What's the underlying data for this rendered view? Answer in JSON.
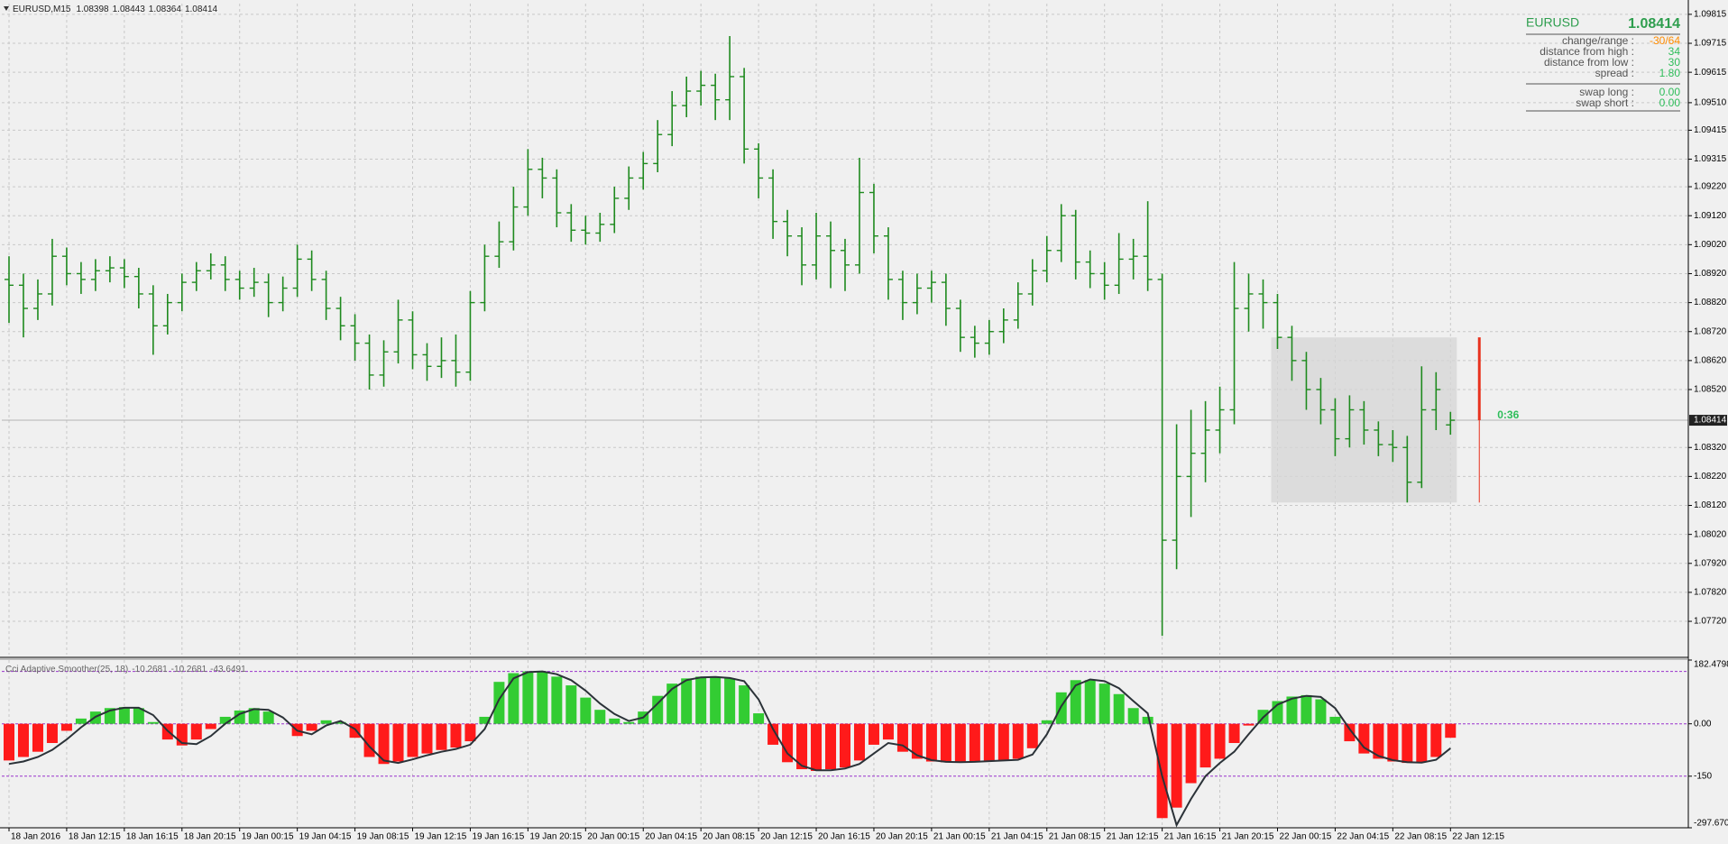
{
  "chart_data": [
    {
      "type": "ohlc",
      "title": "EURUSD,M15",
      "color": "#1e8a1e",
      "grid": true,
      "xlim": [
        -0.5,
        116.5
      ],
      "ylim": [
        1.07605,
        1.09852
      ],
      "xticks": [
        {
          "value": 0,
          "label": "18 Jan 2016"
        },
        {
          "value": 4,
          "label": "18 Jan 12:15"
        },
        {
          "value": 8,
          "label": "18 Jan 16:15"
        },
        {
          "value": 12,
          "label": "18 Jan 20:15"
        },
        {
          "value": 16,
          "label": "19 Jan 00:15"
        },
        {
          "value": 20,
          "label": "19 Jan 04:15"
        },
        {
          "value": 24,
          "label": "19 Jan 08:15"
        },
        {
          "value": 28,
          "label": "19 Jan 12:15"
        },
        {
          "value": 32,
          "label": "19 Jan 16:15"
        },
        {
          "value": 36,
          "label": "19 Jan 20:15"
        },
        {
          "value": 40,
          "label": "20 Jan 00:15"
        },
        {
          "value": 44,
          "label": "20 Jan 04:15"
        },
        {
          "value": 48,
          "label": "20 Jan 08:15"
        },
        {
          "value": 52,
          "label": "20 Jan 12:15"
        },
        {
          "value": 56,
          "label": "20 Jan 16:15"
        },
        {
          "value": 60,
          "label": "20 Jan 20:15"
        },
        {
          "value": 64,
          "label": "21 Jan 00:15"
        },
        {
          "value": 68,
          "label": "21 Jan 04:15"
        },
        {
          "value": 72,
          "label": "21 Jan 08:15"
        },
        {
          "value": 76,
          "label": "21 Jan 12:15"
        },
        {
          "value": 80,
          "label": "21 Jan 16:15"
        },
        {
          "value": 84,
          "label": "21 Jan 20:15"
        },
        {
          "value": 88,
          "label": "22 Jan 00:15"
        },
        {
          "value": 92,
          "label": "22 Jan 04:15"
        },
        {
          "value": 96,
          "label": "22 Jan 08:15"
        },
        {
          "value": 100,
          "label": "22 Jan 12:15"
        }
      ],
      "yticks": [
        1.09815,
        1.09715,
        1.09615,
        {
          "value": 1.0951,
          "label": "1.09510"
        },
        1.09415,
        1.09315,
        {
          "value": 1.0922,
          "label": "1.09220"
        },
        {
          "value": 1.0912,
          "label": "1.09120"
        },
        {
          "value": 1.0902,
          "label": "1.09020"
        },
        {
          "value": 1.0892,
          "label": "1.08920"
        },
        {
          "value": 1.0882,
          "label": "1.08820"
        },
        {
          "value": 1.0872,
          "label": "1.08720"
        },
        {
          "value": 1.0862,
          "label": "1.08620"
        },
        {
          "value": 1.0852,
          "label": "1.08520"
        },
        {
          "value": 1.0832,
          "label": "1.08320"
        },
        {
          "value": 1.0822,
          "label": "1.08220"
        },
        {
          "value": 1.0812,
          "label": "1.08120"
        },
        {
          "value": 1.0802,
          "label": "1.08020"
        },
        {
          "value": 1.0792,
          "label": "1.07920"
        },
        {
          "value": 1.0782,
          "label": "1.07820"
        },
        {
          "value": 1.0772,
          "label": "1.07720"
        }
      ],
      "open": [
        1.089,
        1.0888,
        1.088,
        1.0885,
        1.0898,
        1.0892,
        1.089,
        1.0893,
        1.0894,
        1.0891,
        1.0885,
        1.0874,
        1.0882,
        1.0889,
        1.0893,
        1.0895,
        1.089,
        1.0887,
        1.0889,
        1.0882,
        1.0887,
        1.0897,
        1.089,
        1.088,
        1.0874,
        1.0868,
        1.0857,
        1.0865,
        1.0876,
        1.0864,
        1.086,
        1.0862,
        1.0858,
        1.0882,
        1.0898,
        1.0903,
        1.0915,
        1.0928,
        1.0925,
        1.0913,
        1.0907,
        1.0906,
        1.0909,
        1.0918,
        1.0925,
        1.093,
        1.094,
        1.095,
        1.0955,
        1.0957,
        1.0952,
        1.096,
        1.0935,
        1.0925,
        1.091,
        1.0905,
        1.0895,
        1.0905,
        1.09,
        1.0895,
        1.092,
        1.0905,
        1.089,
        1.0882,
        1.0887,
        1.0889,
        1.088,
        1.087,
        1.0868,
        1.0872,
        1.0876,
        1.0885,
        1.0893,
        1.09,
        1.0912,
        1.0896,
        1.0892,
        1.0888,
        1.0897,
        1.0898,
        1.089,
        1.08,
        1.0822,
        1.083,
        1.0838,
        1.0845,
        1.088,
        1.0885,
        1.0882,
        1.087,
        1.0862,
        1.0852,
        1.0845,
        1.0835,
        1.0845,
        1.0838,
        1.0833,
        1.0832,
        1.082,
        1.0845,
        1.08398
      ],
      "high": [
        1.0898,
        1.0892,
        1.089,
        1.0904,
        1.0901,
        1.0896,
        1.0897,
        1.0898,
        1.0897,
        1.0894,
        1.0888,
        1.0885,
        1.0892,
        1.0896,
        1.0899,
        1.0898,
        1.0893,
        1.0894,
        1.0892,
        1.0891,
        1.0902,
        1.09,
        1.0893,
        1.0884,
        1.0878,
        1.0871,
        1.0869,
        1.0883,
        1.0879,
        1.0868,
        1.087,
        1.0871,
        1.0886,
        1.0902,
        1.091,
        1.0922,
        1.0935,
        1.0932,
        1.0928,
        1.0916,
        1.0912,
        1.0913,
        1.0922,
        1.0929,
        1.0934,
        1.0945,
        1.0955,
        1.096,
        1.0962,
        1.0961,
        1.0974,
        1.0963,
        1.0937,
        1.0928,
        1.0914,
        1.0908,
        1.0913,
        1.091,
        1.0904,
        1.0932,
        1.0923,
        1.0908,
        1.0893,
        1.0892,
        1.0893,
        1.0892,
        1.0883,
        1.0874,
        1.0876,
        1.088,
        1.0889,
        1.0897,
        1.0905,
        1.0916,
        1.0914,
        1.09,
        1.0896,
        1.0906,
        1.0904,
        1.0917,
        1.0892,
        1.084,
        1.0845,
        1.0848,
        1.0853,
        1.0896,
        1.0892,
        1.089,
        1.0885,
        1.0874,
        1.0865,
        1.0856,
        1.0849,
        1.085,
        1.0848,
        1.0841,
        1.0838,
        1.0836,
        1.086,
        1.0858,
        1.08443
      ],
      "low": [
        1.0875,
        1.087,
        1.0876,
        1.0881,
        1.0888,
        1.0885,
        1.0886,
        1.0889,
        1.0887,
        1.088,
        1.0864,
        1.0871,
        1.0879,
        1.0886,
        1.089,
        1.0886,
        1.0883,
        1.0884,
        1.0877,
        1.0879,
        1.0884,
        1.0886,
        1.0876,
        1.0869,
        1.0862,
        1.0852,
        1.0853,
        1.0861,
        1.0859,
        1.0855,
        1.0856,
        1.0853,
        1.0855,
        1.0879,
        1.0894,
        1.09,
        1.0912,
        1.0918,
        1.0908,
        1.0903,
        1.0902,
        1.0903,
        1.0906,
        1.0914,
        1.0921,
        1.0927,
        1.0936,
        1.0946,
        1.095,
        1.0945,
        1.0945,
        1.093,
        1.0918,
        1.0904,
        1.0898,
        1.0888,
        1.089,
        1.0887,
        1.0886,
        1.0892,
        1.0899,
        1.0883,
        1.0876,
        1.0878,
        1.0882,
        1.0874,
        1.0865,
        1.0863,
        1.0864,
        1.0868,
        1.0873,
        1.0881,
        1.0889,
        1.0896,
        1.089,
        1.0887,
        1.0883,
        1.0885,
        1.089,
        1.0886,
        1.0767,
        1.079,
        1.0808,
        1.082,
        1.083,
        1.084,
        1.0872,
        1.0873,
        1.0866,
        1.0855,
        1.0845,
        1.084,
        1.0829,
        1.0832,
        1.0833,
        1.0829,
        1.0827,
        1.0813,
        1.0818,
        1.0838,
        1.08364
      ],
      "close": [
        1.0888,
        1.088,
        1.0885,
        1.0898,
        1.0892,
        1.089,
        1.0893,
        1.0894,
        1.0891,
        1.0885,
        1.0874,
        1.0882,
        1.0889,
        1.0893,
        1.0895,
        1.089,
        1.0887,
        1.0889,
        1.0882,
        1.0887,
        1.0897,
        1.089,
        1.088,
        1.0874,
        1.0868,
        1.0857,
        1.0865,
        1.0876,
        1.0864,
        1.086,
        1.0862,
        1.0858,
        1.0882,
        1.0898,
        1.0903,
        1.0915,
        1.0928,
        1.0925,
        1.0913,
        1.0907,
        1.0906,
        1.0909,
        1.0918,
        1.0925,
        1.093,
        1.094,
        1.095,
        1.0955,
        1.0957,
        1.0952,
        1.096,
        1.0935,
        1.0925,
        1.091,
        1.0905,
        1.0895,
        1.0905,
        1.09,
        1.0895,
        1.092,
        1.0905,
        1.089,
        1.0882,
        1.0887,
        1.0889,
        1.088,
        1.087,
        1.0868,
        1.0872,
        1.0876,
        1.0885,
        1.0893,
        1.09,
        1.0912,
        1.0896,
        1.0892,
        1.0888,
        1.0897,
        1.0898,
        1.089,
        1.08,
        1.0822,
        1.083,
        1.0838,
        1.0845,
        1.088,
        1.0885,
        1.0882,
        1.087,
        1.0862,
        1.0852,
        1.0845,
        1.0835,
        1.0845,
        1.0838,
        1.0833,
        1.0832,
        1.082,
        1.0845,
        1.0852,
        1.08414
      ],
      "range_box": {
        "bars": [
          88,
          100
        ],
        "prices": [
          1.0813,
          1.087
        ]
      },
      "timer": {
        "label": "0:36",
        "high": 1.087,
        "low": 1.0813
      }
    },
    {
      "type": "histogram",
      "title": "Cci Adaptive Smoother(25, 18)",
      "readout": [
        -10.2681,
        -10.2681,
        -43.6491
      ],
      "up_color": "#33cc33",
      "down_color": "#ff1a1a",
      "line_color": "#2b3238",
      "level_color": "#9932cc",
      "ylim": [
        -297.6702,
        182.4798
      ],
      "yticks": [
        182.4798,
        {
          "value": 0,
          "label": "0.00"
        },
        -150,
        -297.6702
      ],
      "levels": [
        150,
        0,
        -150
      ],
      "values": [
        -105,
        -95,
        -80,
        -55,
        -20,
        15,
        35,
        45,
        48,
        45,
        5,
        -45,
        -62,
        -45,
        -15,
        20,
        38,
        45,
        35,
        0,
        -35,
        -20,
        10,
        5,
        -40,
        -95,
        -115,
        -108,
        -95,
        -85,
        -75,
        -68,
        -50,
        20,
        120,
        145,
        150,
        148,
        135,
        110,
        75,
        40,
        15,
        5,
        35,
        80,
        115,
        130,
        135,
        132,
        130,
        110,
        30,
        -60,
        -110,
        -130,
        -135,
        -130,
        -125,
        -105,
        -60,
        -45,
        -80,
        -100,
        -108,
        -110,
        -110,
        -108,
        -106,
        -105,
        -100,
        -70,
        10,
        90,
        125,
        125,
        115,
        85,
        45,
        20,
        -270,
        -240,
        -170,
        -125,
        -100,
        -55,
        -5,
        40,
        65,
        78,
        82,
        70,
        20,
        -50,
        -85,
        -100,
        -108,
        -112,
        -110,
        -95,
        -40
      ],
      "signal": [
        -115,
        -108,
        -95,
        -75,
        -45,
        -10,
        20,
        38,
        46,
        46,
        25,
        -20,
        -55,
        -58,
        -35,
        0,
        28,
        42,
        40,
        18,
        -20,
        -30,
        -5,
        8,
        -15,
        -65,
        -105,
        -112,
        -102,
        -90,
        -80,
        -72,
        -60,
        -15,
        70,
        130,
        148,
        150,
        142,
        125,
        95,
        58,
        28,
        8,
        18,
        58,
        100,
        125,
        133,
        134,
        131,
        122,
        70,
        -15,
        -85,
        -120,
        -133,
        -133,
        -128,
        -115,
        -85,
        -55,
        -62,
        -90,
        -104,
        -109,
        -110,
        -109,
        -107,
        -105,
        -103,
        -88,
        -30,
        50,
        110,
        127,
        122,
        102,
        65,
        30,
        -150,
        -290,
        -215,
        -150,
        -112,
        -80,
        -30,
        18,
        55,
        72,
        80,
        77,
        45,
        -15,
        -68,
        -92,
        -104,
        -110,
        -111,
        -103,
        -70
      ]
    }
  ],
  "info_panel": {
    "symbol": "EURUSD",
    "price": 1.08414,
    "rows": [
      {
        "label": "change/range :",
        "value": "-30/64"
      },
      {
        "label": "distance from high :",
        "value": "34"
      },
      {
        "label": "distance from low :",
        "value": "30"
      },
      {
        "label": "spread :",
        "value": "1.80"
      },
      {
        "label": "swap long :",
        "value": "0.00"
      },
      {
        "label": "swap short :",
        "value": "0.00"
      }
    ]
  }
}
